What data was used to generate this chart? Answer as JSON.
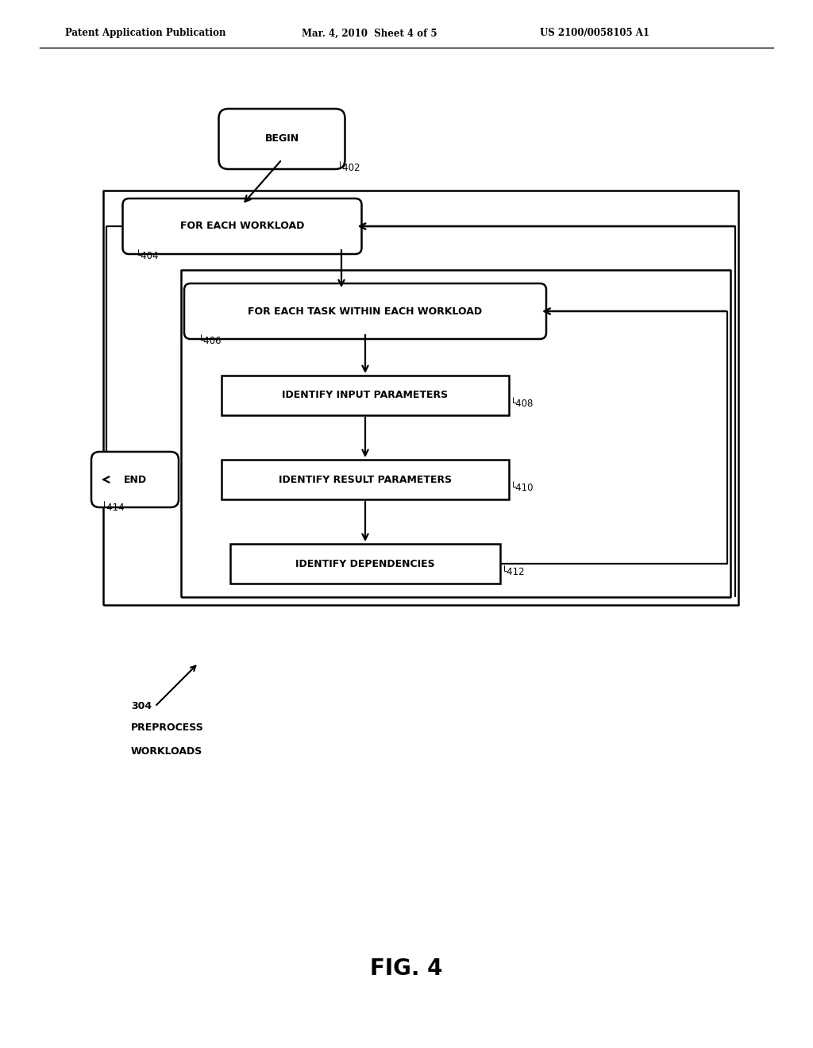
{
  "bg_color": "#ffffff",
  "header_left": "Patent Application Publication",
  "header_mid": "Mar. 4, 2010  Sheet 4 of 5",
  "header_right": "US 2100/0058105 A1",
  "fig_label": "FIG. 4",
  "begin_label": "BEGIN",
  "begin_ref": "402",
  "fw_label": "FOR EACH WORKLOAD",
  "fw_ref": "404",
  "ft_label": "FOR EACH TASK WITHIN EACH WORKLOAD",
  "ft_ref": "406",
  "ip_label": "IDENTIFY INPUT PARAMETERS",
  "ip_ref": "408",
  "ir_label": "IDENTIFY RESULT PARAMETERS",
  "ir_ref": "410",
  "id_label": "IDENTIFY DEPENDENCIES",
  "id_ref": "412",
  "end_label": "END",
  "end_ref": "414",
  "preprocess_line1": "304",
  "preprocess_line2": "PREPROCESS",
  "preprocess_line3": "WORKLOADS"
}
